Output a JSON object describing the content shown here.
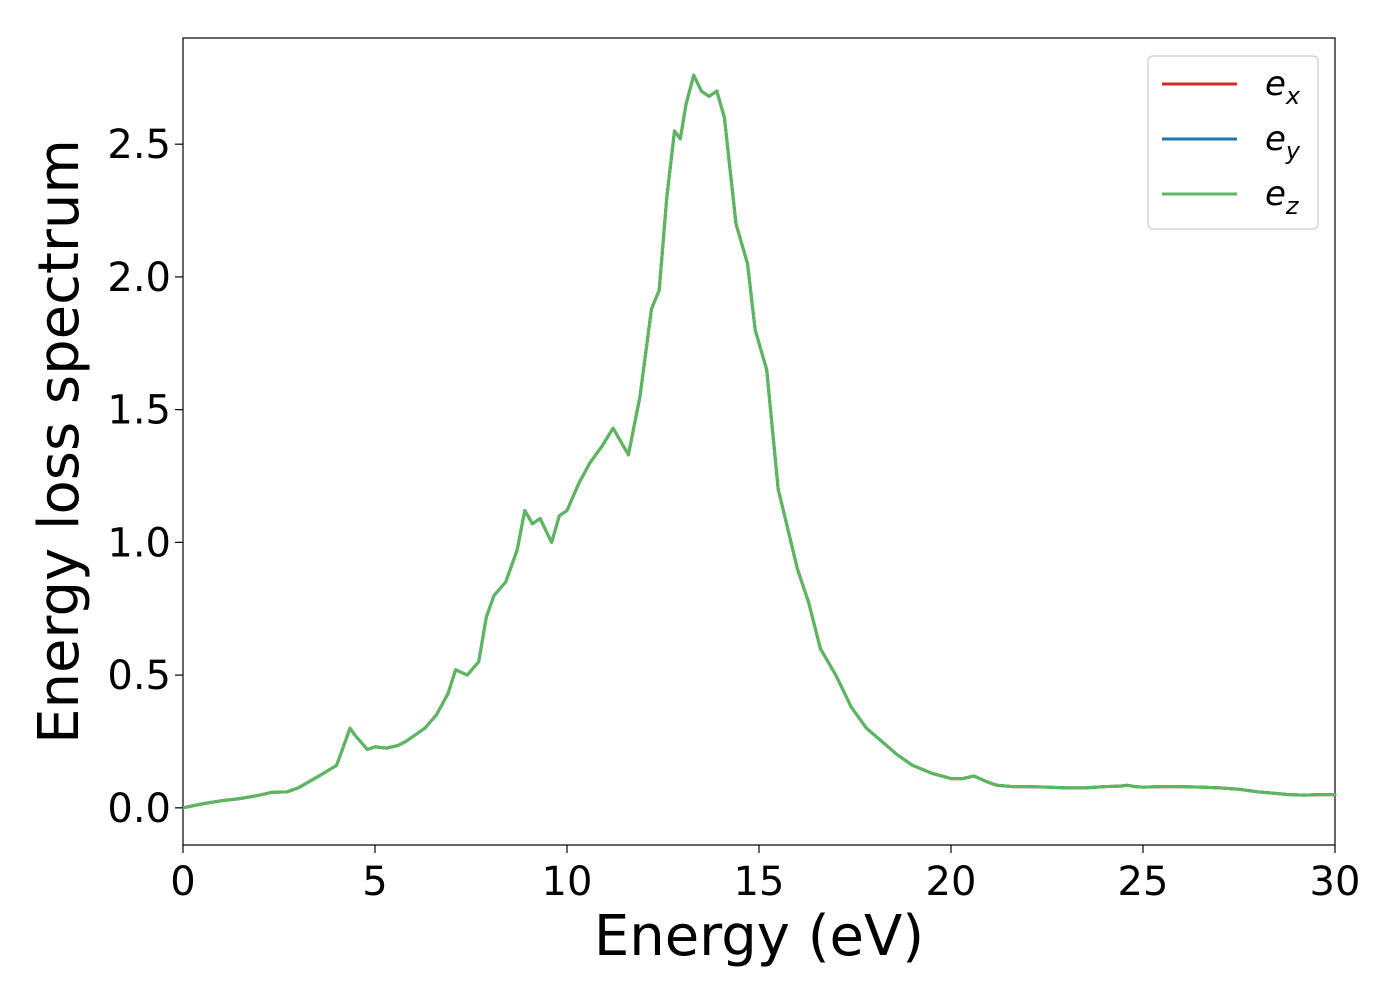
{
  "chart_data": {
    "type": "line",
    "title": "",
    "xlabel": "Energy (eV)",
    "ylabel": "Energy loss spectrum",
    "xlim": [
      0,
      30
    ],
    "ylim": [
      -0.14,
      2.9
    ],
    "xticks": [
      0,
      5,
      10,
      15,
      20,
      25,
      30
    ],
    "yticks": [
      0.0,
      0.5,
      1.0,
      1.5,
      2.0,
      2.5
    ],
    "xtick_labels": [
      "0",
      "5",
      "10",
      "15",
      "20",
      "25",
      "30"
    ],
    "ytick_labels": [
      "0.0",
      "0.5",
      "1.0",
      "1.5",
      "2.0",
      "2.5"
    ],
    "grid": false,
    "legend_position": "top-right",
    "series": [
      {
        "name": "e",
        "subscript": "x",
        "color": "#d62728",
        "ref": "curve"
      },
      {
        "name": "e",
        "subscript": "y",
        "color": "#1f77b4",
        "ref": "curve"
      },
      {
        "name": "e",
        "subscript": "z",
        "color": "#5cb85c",
        "ref": "curve"
      }
    ],
    "curve": {
      "x": [
        0,
        0.5,
        1.0,
        1.5,
        2.0,
        2.3,
        2.7,
        3.0,
        3.3,
        3.6,
        4.0,
        4.2,
        4.35,
        4.5,
        4.8,
        5.0,
        5.3,
        5.6,
        5.8,
        6.0,
        6.3,
        6.6,
        6.9,
        7.1,
        7.4,
        7.7,
        7.9,
        8.1,
        8.4,
        8.7,
        8.9,
        9.1,
        9.3,
        9.6,
        9.8,
        10.0,
        10.3,
        10.6,
        10.9,
        11.2,
        11.6,
        11.9,
        12.2,
        12.4,
        12.6,
        12.8,
        12.95,
        13.1,
        13.3,
        13.5,
        13.7,
        13.9,
        14.1,
        14.4,
        14.7,
        14.9,
        15.2,
        15.5,
        15.7,
        16.0,
        16.3,
        16.6,
        17.0,
        17.4,
        17.8,
        18.2,
        18.6,
        19.0,
        19.5,
        20.0,
        20.3,
        20.6,
        20.9,
        21.2,
        21.6,
        22.0,
        22.5,
        23.0,
        23.5,
        24.0,
        24.4,
        24.6,
        24.8,
        25.0,
        25.5,
        26.0,
        26.5,
        27.0,
        27.5,
        28.0,
        28.4,
        28.8,
        29.2,
        29.6,
        30.0
      ],
      "y": [
        0.0,
        0.015,
        0.027,
        0.035,
        0.048,
        0.058,
        0.06,
        0.075,
        0.1,
        0.125,
        0.16,
        0.24,
        0.3,
        0.27,
        0.22,
        0.23,
        0.225,
        0.235,
        0.25,
        0.27,
        0.3,
        0.35,
        0.43,
        0.52,
        0.5,
        0.55,
        0.72,
        0.8,
        0.85,
        0.97,
        1.12,
        1.07,
        1.09,
        1.0,
        1.1,
        1.12,
        1.22,
        1.3,
        1.36,
        1.43,
        1.33,
        1.55,
        1.88,
        1.95,
        2.3,
        2.55,
        2.52,
        2.65,
        2.76,
        2.7,
        2.68,
        2.7,
        2.6,
        2.2,
        2.05,
        1.8,
        1.65,
        1.2,
        1.08,
        0.9,
        0.77,
        0.6,
        0.5,
        0.38,
        0.3,
        0.25,
        0.2,
        0.16,
        0.13,
        0.11,
        0.11,
        0.12,
        0.1,
        0.085,
        0.08,
        0.08,
        0.078,
        0.075,
        0.075,
        0.08,
        0.082,
        0.085,
        0.08,
        0.078,
        0.08,
        0.08,
        0.078,
        0.075,
        0.07,
        0.06,
        0.055,
        0.05,
        0.048,
        0.05,
        0.05
      ]
    }
  }
}
